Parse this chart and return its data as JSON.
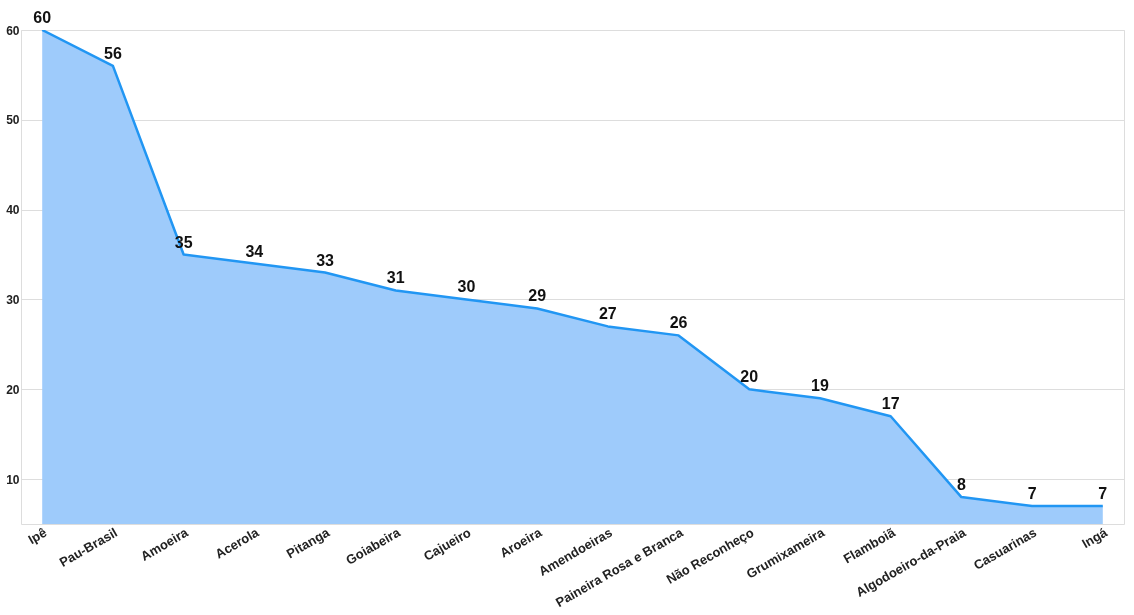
{
  "chart_data": {
    "type": "area",
    "categories": [
      "Ipê",
      "Pau-Brasil",
      "Amoeira",
      "Acerola",
      "Pitanga",
      "Goiabeira",
      "Cajueiro",
      "Aroeira",
      "Amendoeiras",
      "Paineira Rosa e Branca",
      "Não Reconheço",
      "Grumixameira",
      "Flamboiã",
      "Algodoeiro-da-Praia",
      "Casuarinas",
      "Ingá"
    ],
    "series": [
      {
        "color": "#2196f3",
        "values": [
          60,
          56,
          35,
          34,
          33,
          31,
          30,
          29,
          27,
          26,
          20,
          19,
          17,
          8,
          7,
          7
        ]
      }
    ],
    "ylim": [
      5,
      60
    ],
    "yticks": [
      10,
      20,
      30,
      40,
      50,
      60
    ],
    "grid": "y",
    "data_labels": true
  }
}
